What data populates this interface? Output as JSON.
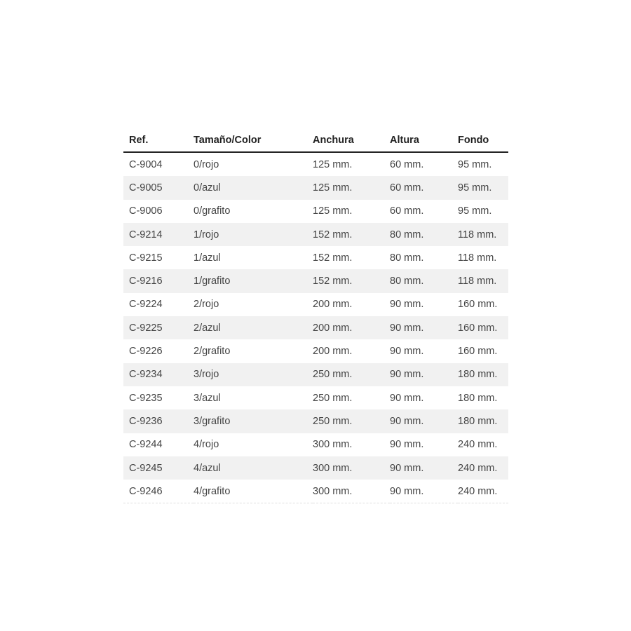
{
  "table": {
    "headers": [
      "Ref.",
      "Tamaño/Color",
      "Anchura",
      "Altura",
      "Fondo"
    ],
    "rows": [
      [
        "C-9004",
        "0/rojo",
        "125 mm.",
        "60 mm.",
        "95 mm."
      ],
      [
        "C-9005",
        "0/azul",
        "125 mm.",
        "60 mm.",
        "95 mm."
      ],
      [
        "C-9006",
        "0/grafito",
        "125 mm.",
        "60 mm.",
        "95 mm."
      ],
      [
        "C-9214",
        "1/rojo",
        "152 mm.",
        "80 mm.",
        "118 mm."
      ],
      [
        "C-9215",
        "1/azul",
        "152 mm.",
        "80 mm.",
        "118 mm."
      ],
      [
        "C-9216",
        "1/grafito",
        "152 mm.",
        "80 mm.",
        "118 mm."
      ],
      [
        "C-9224",
        "2/rojo",
        "200 mm.",
        "90 mm.",
        "160 mm."
      ],
      [
        "C-9225",
        "2/azul",
        "200 mm.",
        "90 mm.",
        "160 mm."
      ],
      [
        "C-9226",
        "2/grafito",
        "200 mm.",
        "90 mm.",
        "160 mm."
      ],
      [
        "C-9234",
        "3/rojo",
        "250 mm.",
        "90 mm.",
        "180 mm."
      ],
      [
        "C-9235",
        "3/azul",
        "250 mm.",
        "90 mm.",
        "180 mm."
      ],
      [
        "C-9236",
        "3/grafito",
        "250 mm.",
        "90 mm.",
        "180 mm."
      ],
      [
        "C-9244",
        "4/rojo",
        "300 mm.",
        "90 mm.",
        "240 mm."
      ],
      [
        "C-9245",
        "4/azul",
        "300 mm.",
        "90 mm.",
        "240 mm."
      ],
      [
        "C-9246",
        "4/grafito",
        "300 mm.",
        "90 mm.",
        "240 mm."
      ]
    ]
  }
}
